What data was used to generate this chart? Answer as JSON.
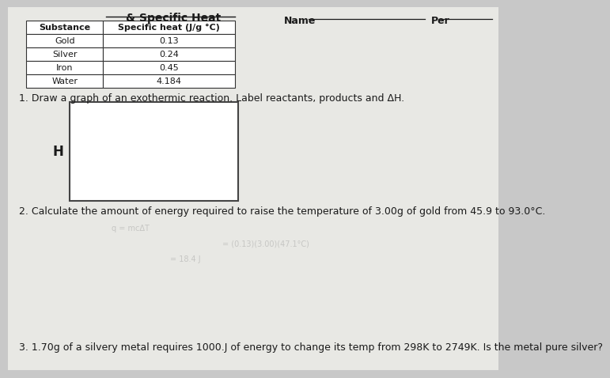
{
  "title_partial": "& Specific Heat",
  "name_label": "Name",
  "per_label": "Per",
  "table_substances": [
    "Substance",
    "Gold",
    "Silver",
    "Iron",
    "Water"
  ],
  "table_col2_header": "Specific heat (J/g °C)",
  "table_values": [
    "0.13",
    "0.24",
    "0.45",
    "4.184"
  ],
  "q1_text": "1. Draw a graph of an exothermic reaction. Label reactants, products and ΔH.",
  "h_label": "H",
  "q2_text": "2. Calculate the amount of energy required to raise the temperature of 3.00g of gold from 45.9 to 93.0°C.",
  "q3_text": "3. 1.70g of a silvery metal requires 1000.J of energy to change its temp from 298K to 2749K. Is the metal pure silver?",
  "bg_color": "#c8c8c8",
  "page_color": "#e8e8e4",
  "text_color": "#1a1a1a",
  "table_bg": "#ffffff",
  "box_color": "#f0f0f0",
  "box_border": "#444444",
  "table_border": "#333333"
}
